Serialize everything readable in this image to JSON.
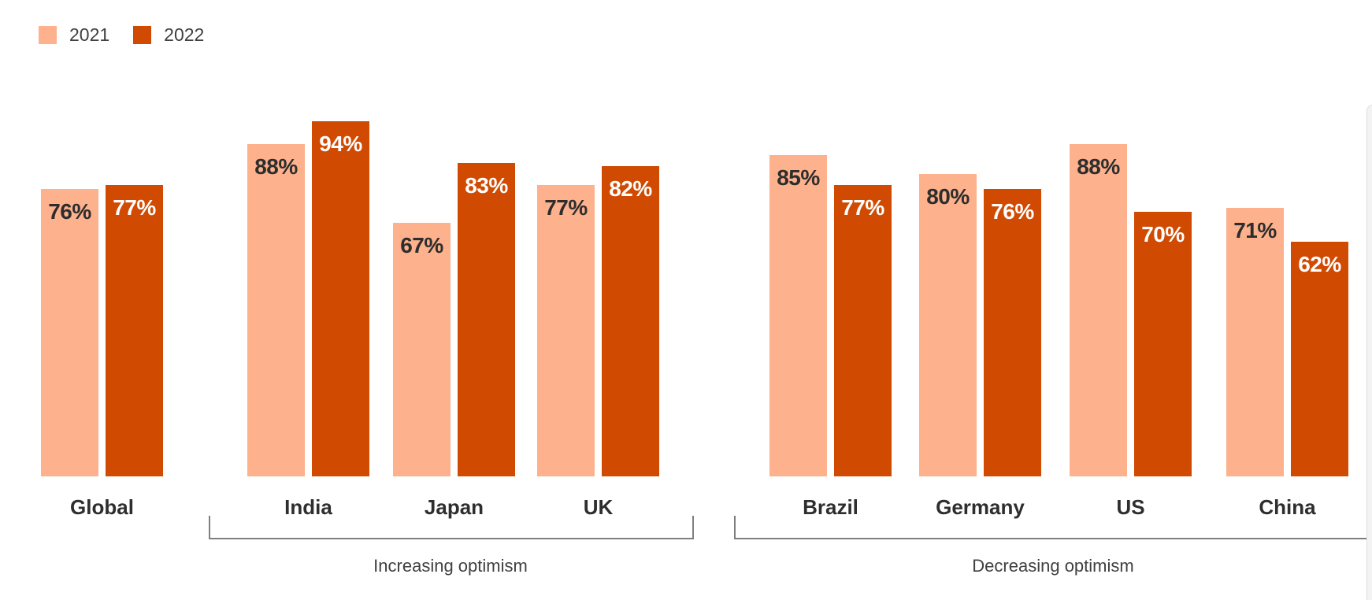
{
  "legend": {
    "items": [
      {
        "label": "2021",
        "color": "#fdb18c"
      },
      {
        "label": "2022",
        "color": "#d04a02"
      }
    ]
  },
  "chart_data": {
    "type": "bar",
    "title": "",
    "value_suffix": "%",
    "categories": [
      "Global",
      "India",
      "Japan",
      "UK",
      "Brazil",
      "Germany",
      "US",
      "China"
    ],
    "series": [
      {
        "name": "2021",
        "color": "#fdb18c",
        "values": [
          76,
          88,
          67,
          77,
          85,
          80,
          88,
          71
        ]
      },
      {
        "name": "2022",
        "color": "#d04a02",
        "values": [
          77,
          94,
          83,
          82,
          77,
          76,
          70,
          62
        ]
      }
    ],
    "groups": [
      {
        "label": "Increasing optimism",
        "categories": [
          "India",
          "Japan",
          "UK"
        ]
      },
      {
        "label": "Decreasing optimism",
        "categories": [
          "Brazil",
          "Germany",
          "US",
          "China"
        ]
      }
    ],
    "ylim": [
      0,
      100
    ],
    "grid": false,
    "axes_shown": false,
    "value_labels": "inside-top",
    "legend_position": "top-left",
    "text_color_2021_labels": "#2d2d2d",
    "text_color_2022_labels": "#ffffff",
    "bracket_color": "#7f7f7f"
  }
}
